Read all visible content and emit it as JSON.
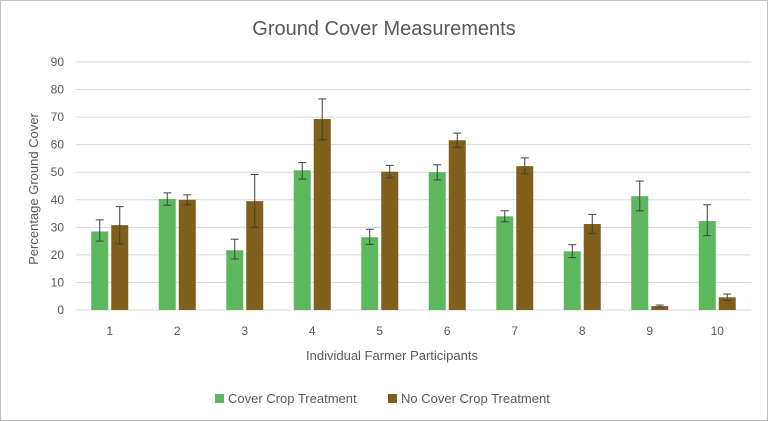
{
  "chart_data": {
    "type": "bar",
    "title": "Ground Cover Measurements",
    "xlabel": "Individual Farmer Participants",
    "ylabel": "Percentage Ground Cover",
    "ylim": [
      0,
      90
    ],
    "yticks": [
      0,
      10,
      20,
      30,
      40,
      50,
      60,
      70,
      80,
      90
    ],
    "categories": [
      "1",
      "2",
      "3",
      "4",
      "5",
      "6",
      "7",
      "8",
      "9",
      "10"
    ],
    "grid": true,
    "legend_position": "bottom",
    "error_bars": true,
    "series": [
      {
        "name": "Cover Crop Treatment",
        "color": "#5cb85c",
        "values": [
          28.5,
          40.3,
          21.7,
          50.7,
          26.4,
          50.0,
          34.0,
          21.3,
          41.3,
          32.3
        ],
        "error_low": [
          25.0,
          38.0,
          18.5,
          47.5,
          23.8,
          47.2,
          32.0,
          19.0,
          36.0,
          27.0
        ],
        "error_high": [
          32.7,
          42.5,
          25.7,
          53.5,
          29.3,
          52.7,
          36.0,
          23.7,
          46.8,
          38.2
        ]
      },
      {
        "name": "No Cover Crop Treatment",
        "color": "#7f5f1a",
        "values": [
          30.8,
          40.0,
          39.5,
          69.3,
          50.2,
          61.6,
          52.2,
          31.2,
          1.4,
          4.6
        ],
        "error_low": [
          24.0,
          38.2,
          30.0,
          61.8,
          48.0,
          59.0,
          49.4,
          27.8,
          1.0,
          3.4
        ],
        "error_high": [
          37.5,
          41.8,
          49.2,
          76.6,
          52.5,
          64.2,
          55.2,
          34.7,
          1.8,
          5.8
        ]
      }
    ]
  }
}
